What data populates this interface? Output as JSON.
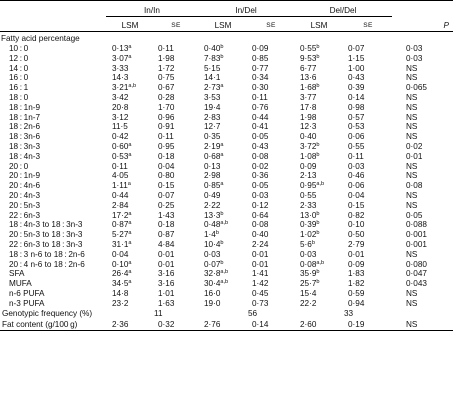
{
  "groups": [
    "In/In",
    "In/Del",
    "Del/Del"
  ],
  "subheaders": {
    "lsm": "LSM",
    "se": "SE",
    "p": "P"
  },
  "section_label": "Fatty acid percentage",
  "rows": [
    {
      "label": "10 : 0",
      "v1": "0·13",
      "s1": "a",
      "e1": "0·11",
      "v2": "0·40",
      "s2": "b",
      "e2": "0·09",
      "v3": "0·55",
      "s3": "b",
      "e3": "0·07",
      "p": "0·03"
    },
    {
      "label": "12 : 0",
      "v1": "3·07",
      "s1": "a",
      "e1": "1·98",
      "v2": "7·83",
      "s2": "b",
      "e2": "0·85",
      "v3": "9·53",
      "s3": "b",
      "e3": "1·15",
      "p": "0·03"
    },
    {
      "label": "14 : 0",
      "v1": "3·33",
      "s1": "",
      "e1": "1·72",
      "v2": "5·15",
      "s2": "",
      "e2": "0·77",
      "v3": "6·77",
      "s3": "",
      "e3": "1·00",
      "p": "NS"
    },
    {
      "label": "16 : 0",
      "v1": "14·3",
      "s1": "",
      "e1": "0·75",
      "v2": "14·1",
      "s2": "",
      "e2": "0·34",
      "v3": "13·6",
      "s3": "",
      "e3": "0·43",
      "p": "NS"
    },
    {
      "label": "16 : 1",
      "v1": "3·21",
      "s1": "a,b",
      "e1": "0·67",
      "v2": "2·73",
      "s2": "a",
      "e2": "0·30",
      "v3": "1·68",
      "s3": "b",
      "e3": "0·39",
      "p": "0·065"
    },
    {
      "label": "18 : 0",
      "v1": "3·42",
      "s1": "",
      "e1": "0·28",
      "v2": "3·53",
      "s2": "",
      "e2": "0·11",
      "v3": "3·77",
      "s3": "",
      "e3": "0·14",
      "p": "NS"
    },
    {
      "label": "18 : 1n-9",
      "v1": "20·8",
      "s1": "",
      "e1": "1·70",
      "v2": "19·4",
      "s2": "",
      "e2": "0·76",
      "v3": "17·8",
      "s3": "",
      "e3": "0·98",
      "p": "NS"
    },
    {
      "label": "18 : 1n-7",
      "v1": "3·12",
      "s1": "",
      "e1": "0·96",
      "v2": "2·83",
      "s2": "",
      "e2": "0·44",
      "v3": "1·98",
      "s3": "",
      "e3": "0·57",
      "p": "NS"
    },
    {
      "label": "18 : 2n-6",
      "v1": "11·5",
      "s1": "",
      "e1": "0·91",
      "v2": "12·7",
      "s2": "",
      "e2": "0·41",
      "v3": "12·3",
      "s3": "",
      "e3": "0·53",
      "p": "NS"
    },
    {
      "label": "18 : 3n-6",
      "v1": "0·42",
      "s1": "",
      "e1": "0·11",
      "v2": "0·35",
      "s2": "",
      "e2": "0·05",
      "v3": "0·40",
      "s3": "",
      "e3": "0·06",
      "p": "NS"
    },
    {
      "label": "18 : 3n-3",
      "v1": "0·60",
      "s1": "a",
      "e1": "0·95",
      "v2": "2·19",
      "s2": "a",
      "e2": "0·43",
      "v3": "3·72",
      "s3": "b",
      "e3": "0·55",
      "p": "0·02"
    },
    {
      "label": "18 : 4n-3",
      "v1": "0·53",
      "s1": "a",
      "e1": "0·18",
      "v2": "0·68",
      "s2": "a",
      "e2": "0·08",
      "v3": "1·08",
      "s3": "b",
      "e3": "0·11",
      "p": "0·01"
    },
    {
      "label": "20 : 0",
      "v1": "0·11",
      "s1": "",
      "e1": "0·04",
      "v2": "0·13",
      "s2": "",
      "e2": "0·02",
      "v3": "0·09",
      "s3": "",
      "e3": "0·03",
      "p": "NS"
    },
    {
      "label": "20 : 1n-9",
      "v1": "4·05",
      "s1": "",
      "e1": "0·80",
      "v2": "2·98",
      "s2": "",
      "e2": "0·36",
      "v3": "2·13",
      "s3": "",
      "e3": "0·46",
      "p": "NS"
    },
    {
      "label": "20 : 4n-6",
      "v1": "1·11",
      "s1": "a",
      "e1": "0·15",
      "v2": "0·85",
      "s2": "a",
      "e2": "0·05",
      "v3": "0·95",
      "s3": "a,b",
      "e3": "0·06",
      "p": "0·08"
    },
    {
      "label": "20 : 4n-3",
      "v1": "0·44",
      "s1": "",
      "e1": "0·07",
      "v2": "0·49",
      "s2": "",
      "e2": "0·03",
      "v3": "0·55",
      "s3": "",
      "e3": "0·04",
      "p": "NS"
    },
    {
      "label": "20 : 5n-3",
      "v1": "2·84",
      "s1": "",
      "e1": "0·25",
      "v2": "2·22",
      "s2": "",
      "e2": "0·12",
      "v3": "2·33",
      "s3": "",
      "e3": "0·15",
      "p": "NS"
    },
    {
      "label": "22 : 6n-3",
      "v1": "17·2",
      "s1": "a",
      "e1": "1·43",
      "v2": "13·3",
      "s2": "b",
      "e2": "0·64",
      "v3": "13·0",
      "s3": "b",
      "e3": "0·82",
      "p": "0·05"
    },
    {
      "label": "18 : 4n-3 to 18 : 3n-3",
      "v1": "0·87",
      "s1": "a",
      "e1": "0·18",
      "v2": "0·48",
      "s2": "a,b",
      "e2": "0·08",
      "v3": "0·39",
      "s3": "b",
      "e3": "0·10",
      "p": "0·088"
    },
    {
      "label": "20 : 5n-3 to 18 : 3n-3",
      "v1": "5·27",
      "s1": "a",
      "e1": "0·87",
      "v2": "1·4",
      "s2": "b",
      "e2": "0·40",
      "v3": "1·02",
      "s3": "b",
      "e3": "0·50",
      "p": "0·001"
    },
    {
      "label": "22 : 6n-3 to 18 : 3n-3",
      "v1": "31·1",
      "s1": "a",
      "e1": "4·84",
      "v2": "10·4",
      "s2": "b",
      "e2": "2·24",
      "v3": "5·6",
      "s3": "b",
      "e3": "2·79",
      "p": "0·001"
    },
    {
      "label": "18 : 3 n-6 to 18 : 2n-6",
      "v1": "0·04",
      "s1": "",
      "e1": "0·01",
      "v2": "0·03",
      "s2": "",
      "e2": "0·01",
      "v3": "0·03",
      "s3": "",
      "e3": "0·01",
      "p": "NS"
    },
    {
      "label": "20 : 4 n-6 to 18 : 2n-6",
      "v1": "0·10",
      "s1": "a",
      "e1": "0·01",
      "v2": "0·07",
      "s2": "b",
      "e2": "0·01",
      "v3": "0·08",
      "s3": "a,b",
      "e3": "0·09",
      "p": "0·080"
    },
    {
      "label": "SFA",
      "v1": "26·4",
      "s1": "a",
      "e1": "3·16",
      "v2": "32·8",
      "s2": "a,b",
      "e2": "1·41",
      "v3": "35·9",
      "s3": "b",
      "e3": "1·83",
      "p": "0·047"
    },
    {
      "label": "MUFA",
      "v1": "34·5",
      "s1": "a",
      "e1": "3·16",
      "v2": "30·4",
      "s2": "a,b",
      "e2": "1·42",
      "v3": "25·7",
      "s3": "b",
      "e3": "1·82",
      "p": "0·043"
    },
    {
      "label": "n-6 PUFA",
      "v1": "14·8",
      "s1": "",
      "e1": "1·01",
      "v2": "16·0",
      "s2": "",
      "e2": "0·45",
      "v3": "15·4",
      "s3": "",
      "e3": "0·59",
      "p": "NS"
    },
    {
      "label": "n-3 PUFA",
      "v1": "23·2",
      "s1": "",
      "e1": "1·63",
      "v2": "19·0",
      "s2": "",
      "e2": "0·73",
      "v3": "22·2",
      "s3": "",
      "e3": "0·94",
      "p": "NS"
    }
  ],
  "genotypic": {
    "label": "Genotypic frequency (%)",
    "v1": "11",
    "v2": "56",
    "v3": "33"
  },
  "fat": {
    "label": "Fat content (g/100 g)",
    "v1": "2·36",
    "e1": "0·32",
    "v2": "2·76",
    "e2": "0·14",
    "v3": "2·60",
    "e3": "0·19",
    "p": "NS"
  }
}
